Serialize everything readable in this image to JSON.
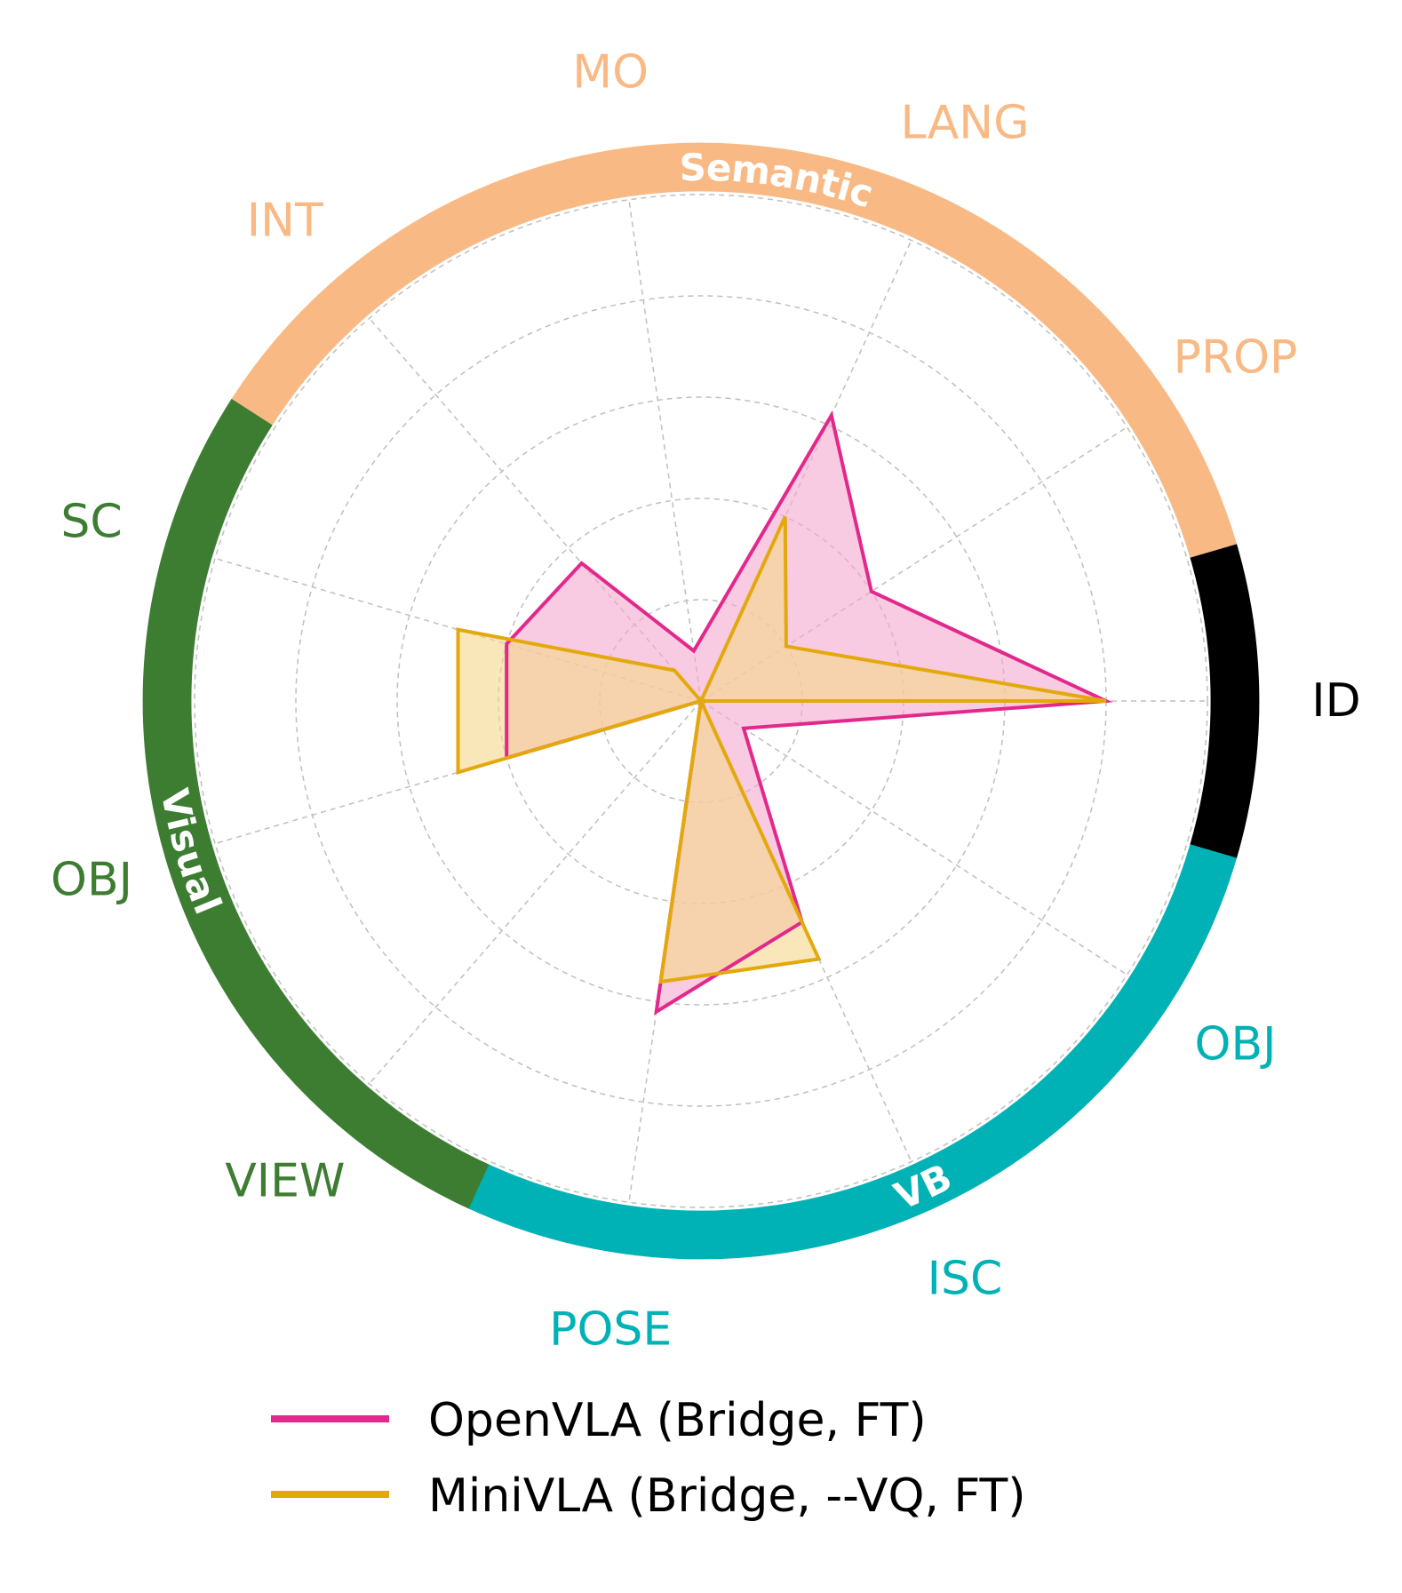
{
  "chart_data": {
    "type": "radar",
    "axes": [
      {
        "label": "ID",
        "group": "ID"
      },
      {
        "label": "PROP",
        "group": "Semantic"
      },
      {
        "label": "LANG",
        "group": "Semantic"
      },
      {
        "label": "MO",
        "group": "Semantic"
      },
      {
        "label": "INT",
        "group": "Semantic"
      },
      {
        "label": "SC",
        "group": "Visual"
      },
      {
        "label": "OBJ",
        "group": "Visual"
      },
      {
        "label": "VIEW",
        "group": "Visual"
      },
      {
        "label": "POSE",
        "group": "VB"
      },
      {
        "label": "ISC",
        "group": "VB"
      },
      {
        "label": "OBJ",
        "group": "VB"
      }
    ],
    "groups": [
      {
        "name": "ID",
        "label": "",
        "color": "#000000"
      },
      {
        "name": "Semantic",
        "label": "Semantic",
        "color": "#F9B984"
      },
      {
        "name": "Visual",
        "label": "Visual",
        "color": "#3D7D31"
      },
      {
        "name": "VB",
        "label": "VB",
        "color": "#00B2B5"
      }
    ],
    "series": [
      {
        "name": "OpenVLA (Bridge, FT)",
        "color": "#E3288C",
        "fill": "#F4A9CE",
        "values": [
          0.8,
          0.4,
          0.62,
          0.1,
          0.36,
          0.4,
          0.4,
          0.0,
          0.62,
          0.48,
          0.1
        ]
      },
      {
        "name": "MiniVLA (Bridge, --VQ, FT)",
        "color": "#E3A90C",
        "fill": "#F5D78A",
        "values": [
          0.8,
          0.2,
          0.4,
          0.0,
          0.08,
          0.5,
          0.5,
          0.0,
          0.56,
          0.56,
          0.0
        ]
      }
    ],
    "rlim": [
      0,
      1
    ],
    "rings": [
      0.2,
      0.4,
      0.6,
      0.8,
      1.0
    ],
    "grid": true,
    "legend": "bottom"
  }
}
